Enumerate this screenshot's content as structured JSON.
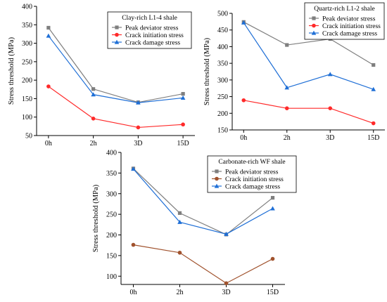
{
  "chart_data": [
    {
      "type": "line",
      "categories": [
        "0h",
        "2h",
        "3D",
        "15D"
      ],
      "ylabel": "Stress threshold (MPa)",
      "xlabel": "",
      "ylim": [
        50,
        400
      ],
      "yticks": [
        50,
        100,
        150,
        200,
        250,
        300,
        350,
        400
      ],
      "legend": {
        "title": "Clay-rich L1-4 shale",
        "position": "top-right"
      },
      "series": [
        {
          "name": "Peak deviator stress",
          "values": [
            342,
            176,
            140,
            163
          ],
          "color": "#7f7f7f",
          "marker": "square"
        },
        {
          "name": "Crack initiation stress",
          "values": [
            183,
            96,
            72,
            80
          ],
          "color": "#ff2a2a",
          "marker": "circle"
        },
        {
          "name": "Crack damage stress",
          "values": [
            320,
            161,
            139,
            152
          ],
          "color": "#1f6fd6",
          "marker": "triangle"
        }
      ]
    },
    {
      "type": "line",
      "categories": [
        "0h",
        "2h",
        "3D",
        "15D"
      ],
      "ylabel": "Stress threshold (MPa)",
      "xlabel": "",
      "ylim": [
        150,
        500
      ],
      "yticks": [
        150,
        200,
        250,
        300,
        350,
        400,
        450,
        500
      ],
      "legend": {
        "title": "Quartz-rich L1-2 shale",
        "position": "top-right"
      },
      "series": [
        {
          "name": "Peak deviator stress",
          "values": [
            474,
            405,
            423,
            345
          ],
          "color": "#7f7f7f",
          "marker": "square"
        },
        {
          "name": "Crack initiation stress",
          "values": [
            239,
            215,
            215,
            170
          ],
          "color": "#ff2a2a",
          "marker": "circle"
        },
        {
          "name": "Crack damage stress",
          "values": [
            472,
            277,
            317,
            272
          ],
          "color": "#1f6fd6",
          "marker": "triangle"
        }
      ]
    },
    {
      "type": "line",
      "categories": [
        "0h",
        "2h",
        "3D",
        "15D"
      ],
      "ylabel": "Stress threshold (MPa)",
      "xlabel": "",
      "ylim": [
        80,
        400
      ],
      "yticks": [
        100,
        150,
        200,
        250,
        300,
        350,
        400
      ],
      "legend": {
        "title": "Carbonate-rich WF shale",
        "position": "top-right"
      },
      "series": [
        {
          "name": "Peak deviator stress",
          "values": [
            361,
            253,
            201,
            290
          ],
          "color": "#7f7f7f",
          "marker": "square"
        },
        {
          "name": "Crack initiation stress",
          "values": [
            176,
            157,
            83,
            142
          ],
          "color": "#a0522d",
          "marker": "circle"
        },
        {
          "name": "Crack damage stress",
          "values": [
            360,
            231,
            202,
            264
          ],
          "color": "#1f6fd6",
          "marker": "triangle"
        }
      ]
    }
  ]
}
